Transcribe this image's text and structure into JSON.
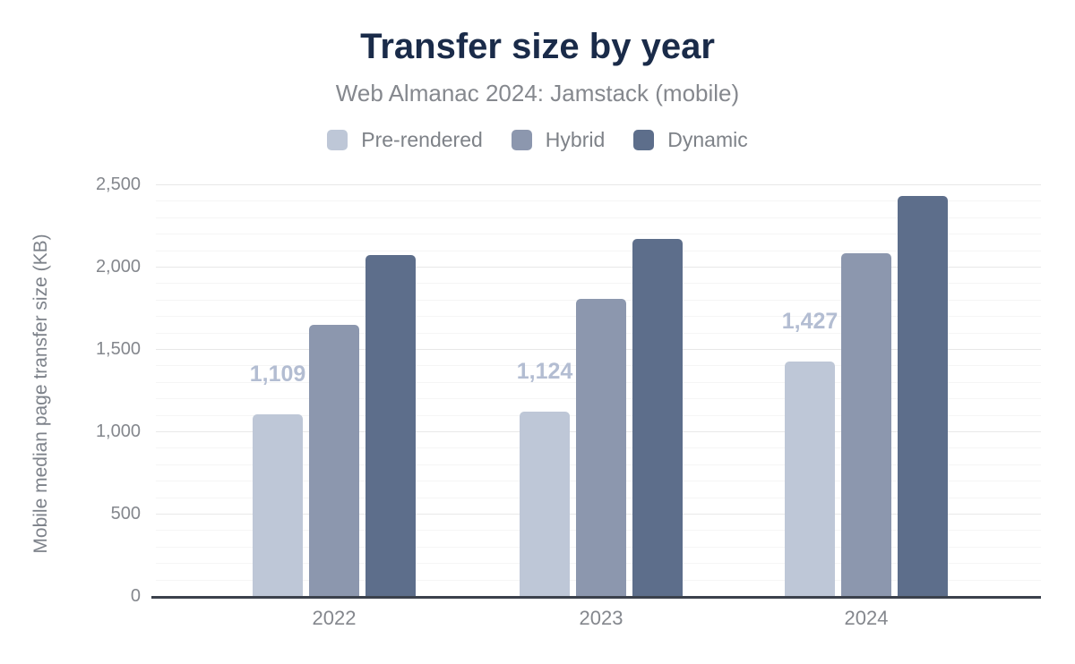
{
  "chart": {
    "title": "Transfer size by year",
    "subtitle": "Web Almanac 2024: Jamstack (mobile)",
    "y_axis_title": "Mobile median page transfer size (KB)",
    "y_ticks": [
      "0",
      "500",
      "1,000",
      "1,500",
      "2,000",
      "2,500"
    ],
    "x_ticks": [
      "2022",
      "2023",
      "2024"
    ],
    "colors": {
      "title": "#1a2b49",
      "subtitle": "#85888e",
      "axis_line": "#3b414c",
      "tick_text": "#84878d",
      "data_label": "#b3bdd2",
      "gridline_major": "#e8e8e8",
      "gridline_minor": "#f5f5f5",
      "background": "#ffffff"
    }
  },
  "chart_data": {
    "type": "bar",
    "title": "Transfer size by year",
    "subtitle": "Web Almanac 2024: Jamstack (mobile)",
    "xlabel": "",
    "ylabel": "Mobile median page transfer size (KB)",
    "ylim": [
      0,
      2500
    ],
    "y_tick_step_major": 500,
    "y_tick_step_minor": 100,
    "grid": "horizontal minor lines every 100, major every 500",
    "legend_position": "top-center",
    "categories": [
      "2022",
      "2023",
      "2024"
    ],
    "series": [
      {
        "name": "Pre-rendered",
        "color": "#bec7d7",
        "values": [
          1109,
          1124,
          1427
        ],
        "data_labels": [
          "1,109",
          "1,124",
          "1,427"
        ]
      },
      {
        "name": "Hybrid",
        "color": "#8c97ae",
        "values": [
          1650,
          1810,
          2085
        ],
        "data_labels": null
      },
      {
        "name": "Dynamic",
        "color": "#5d6e8b",
        "values": [
          2075,
          2175,
          2435
        ],
        "data_labels": null
      }
    ]
  }
}
